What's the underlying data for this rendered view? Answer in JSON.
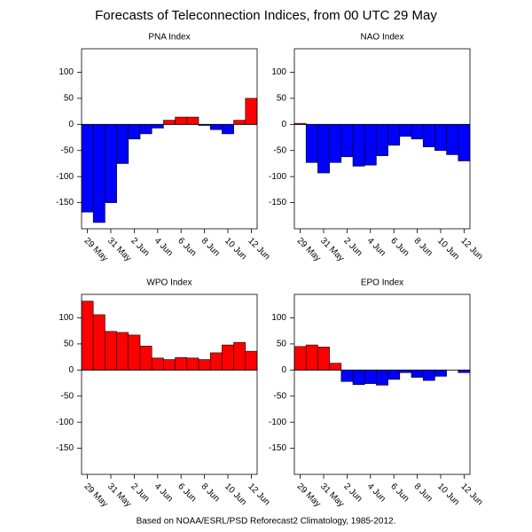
{
  "title": "Forecasts of Teleconnection Indices, from 00 UTC 29 May",
  "footnote": "Based on NOAA/ESRL/PSD Reforecast2 Climatology, 1985-2012.",
  "chart_data": [
    {
      "type": "bar",
      "title": "PNA Index",
      "categories": [
        "29 May",
        null,
        "31 May",
        null,
        "2 Jun",
        null,
        "4 Jun",
        null,
        "6 Jun",
        null,
        "8 Jun",
        null,
        "10 Jun",
        null,
        "12 Jun"
      ],
      "values": [
        -168,
        -188,
        -150,
        -75,
        -28,
        -18,
        -7,
        8,
        14,
        14,
        -2,
        -10,
        -18,
        8,
        50
      ],
      "ylim": [
        -200,
        145
      ],
      "yticks": [
        -150,
        -100,
        -50,
        0,
        50,
        100
      ],
      "pos_color": "#ff0000",
      "neg_color": "#0000ff"
    },
    {
      "type": "bar",
      "title": "NAO Index",
      "categories": [
        "29 May",
        null,
        "31 May",
        null,
        "2 Jun",
        null,
        "4 Jun",
        null,
        "6 Jun",
        null,
        "8 Jun",
        null,
        "10 Jun",
        null,
        "12 Jun"
      ],
      "values": [
        2,
        -73,
        -93,
        -73,
        -62,
        -80,
        -78,
        -60,
        -40,
        -23,
        -28,
        -43,
        -50,
        -58,
        -70
      ],
      "ylim": [
        -200,
        145
      ],
      "yticks": [
        -150,
        -100,
        -50,
        0,
        50,
        100
      ],
      "pos_color": "#ff0000",
      "neg_color": "#0000ff"
    },
    {
      "type": "bar",
      "title": "WPO Index",
      "categories": [
        "29 May",
        null,
        "31 May",
        null,
        "2 Jun",
        null,
        "4 Jun",
        null,
        "6 Jun",
        null,
        "8 Jun",
        null,
        "10 Jun",
        null,
        "12 Jun"
      ],
      "values": [
        132,
        106,
        74,
        72,
        67,
        46,
        23,
        20,
        24,
        23,
        20,
        33,
        48,
        53,
        36
      ],
      "ylim": [
        -200,
        145
      ],
      "yticks": [
        -150,
        -100,
        -50,
        0,
        50,
        100
      ],
      "pos_color": "#ff0000",
      "neg_color": "#0000ff"
    },
    {
      "type": "bar",
      "title": "EPO Index",
      "categories": [
        "29 May",
        null,
        "31 May",
        null,
        "2 Jun",
        null,
        "4 Jun",
        null,
        "6 Jun",
        null,
        "8 Jun",
        null,
        "10 Jun",
        null,
        "12 Jun"
      ],
      "values": [
        45,
        48,
        44,
        13,
        -22,
        -28,
        -26,
        -29,
        -18,
        -5,
        -14,
        -20,
        -12,
        0,
        -5
      ],
      "ylim": [
        -200,
        145
      ],
      "yticks": [
        -150,
        -100,
        -50,
        0,
        50,
        100
      ],
      "pos_color": "#ff0000",
      "neg_color": "#0000ff"
    }
  ]
}
